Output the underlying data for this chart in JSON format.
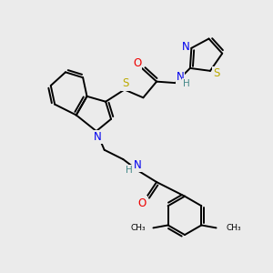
{
  "background_color": "#ebebeb",
  "atom_colors": {
    "C": "#000000",
    "N": "#0000ee",
    "O": "#ee0000",
    "S": "#bbaa00",
    "H": "#448888"
  },
  "bond_color": "#000000",
  "bond_width": 1.4,
  "font_size_atom": 8.5
}
